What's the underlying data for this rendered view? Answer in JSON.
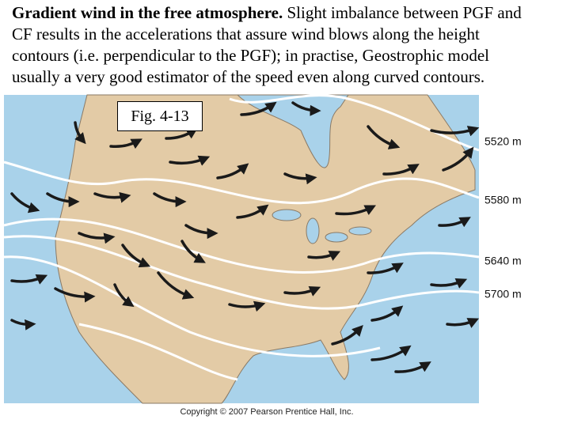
{
  "intro": {
    "bold": "Gradient wind in the free atmosphere.",
    "lines": [
      " Slight imbalance between PGF and",
      "CF results in the accelerations that assure wind blows along the height",
      "contours (i.e. perpendicular to the PGF); in practise, Geostrophic model",
      "usually a very good estimator of the speed even along curved contours."
    ]
  },
  "figure": {
    "caption": "Fig. 4-13",
    "contour_labels": [
      "5520 m",
      "5580 m",
      "5640 m",
      "5700 m"
    ],
    "copyright": "Copyright © 2007 Pearson Prentice Hall, Inc."
  }
}
